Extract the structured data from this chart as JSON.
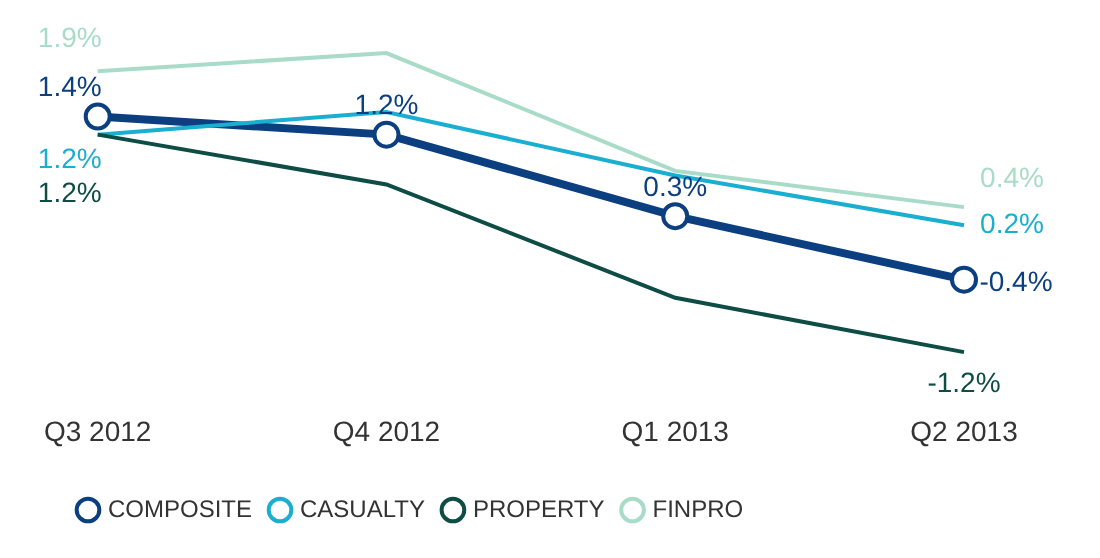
{
  "chart_data": {
    "type": "line",
    "categories": [
      "Q3 2012",
      "Q4 2012",
      "Q1 2013",
      "Q2 2013"
    ],
    "series": [
      {
        "name": "COMPOSITE",
        "color": "#0b3f7f",
        "marker": "circle",
        "values": [
          1.4,
          1.2,
          0.3,
          -0.4
        ],
        "value_labels": [
          "1.4%",
          "1.2%",
          "0.3%",
          "-0.4%"
        ]
      },
      {
        "name": "CASUALTY",
        "color": "#1aaed1",
        "marker": "none",
        "values": [
          1.2,
          1.45,
          0.75,
          0.2
        ],
        "value_labels": [
          "1.2%",
          null,
          null,
          "0.2%"
        ]
      },
      {
        "name": "PROPERTY",
        "color": "#0d4d45",
        "marker": "none",
        "values": [
          1.2,
          0.65,
          -0.6,
          -1.2
        ],
        "value_labels": [
          "1.2%",
          null,
          null,
          "-1.2%"
        ]
      },
      {
        "name": "FINPRO",
        "color": "#a9dcc8",
        "marker": "none",
        "values": [
          1.9,
          2.1,
          0.8,
          0.4
        ],
        "value_labels": [
          "1.9%",
          null,
          null,
          "0.4%"
        ]
      }
    ],
    "grid": false,
    "legend": "bottom left"
  }
}
